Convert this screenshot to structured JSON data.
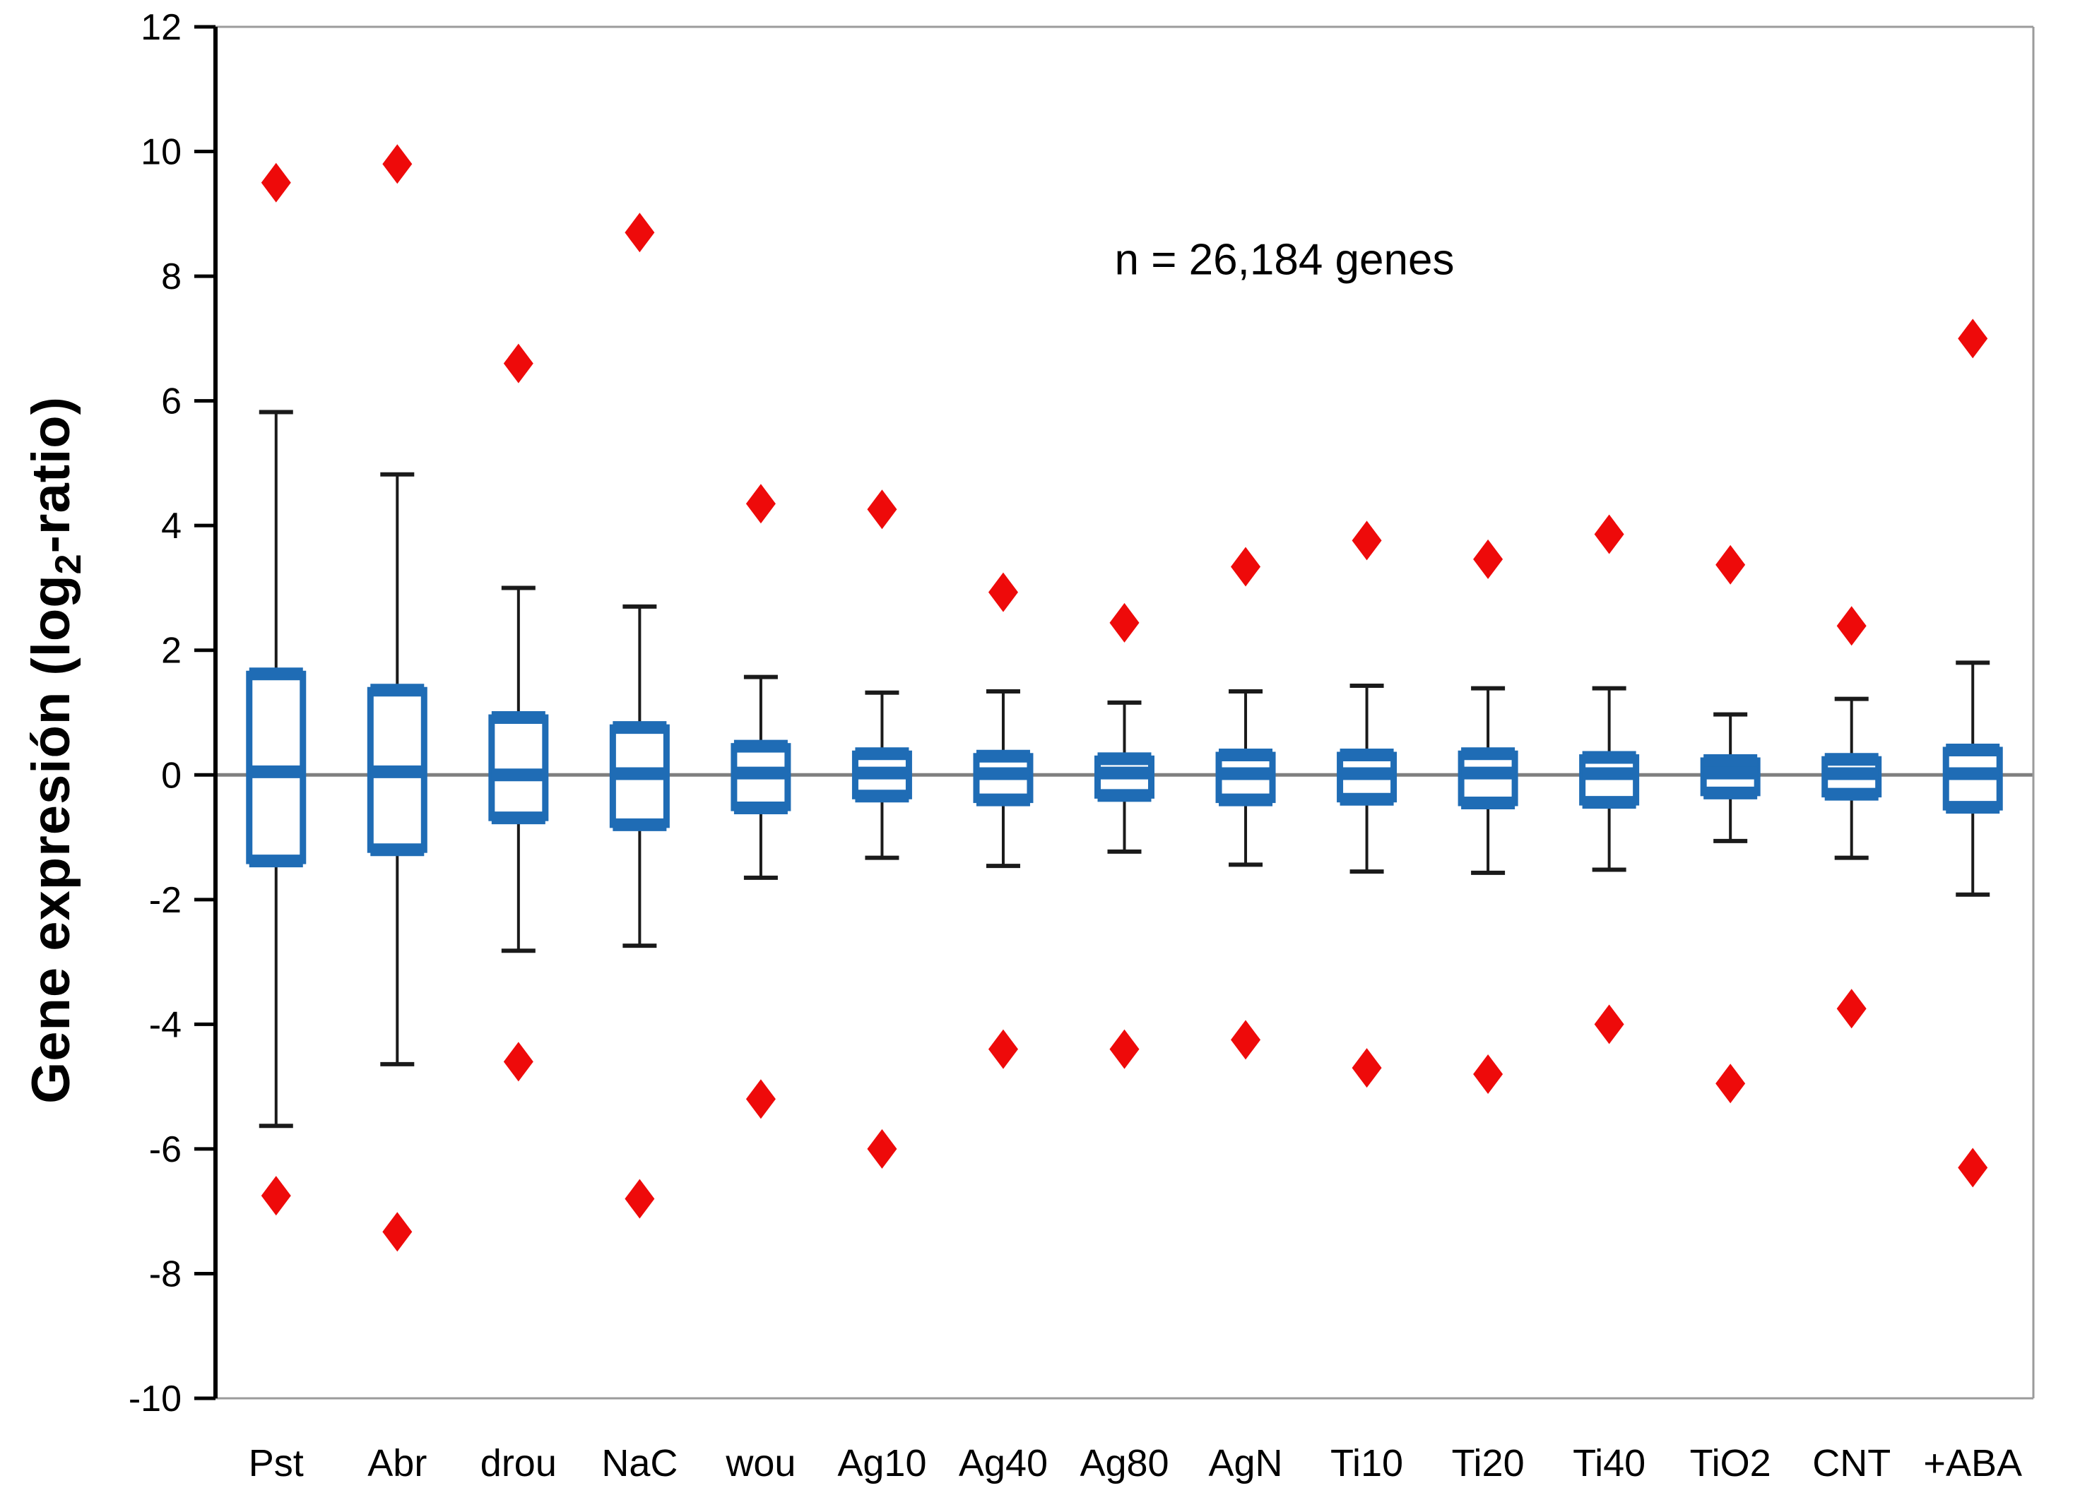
{
  "figure": {
    "annotation": "n = 26,184 genes",
    "ylabel": {
      "prefix": "Gene expresión (log",
      "sub": "2",
      "suffix": "-ratio)"
    }
  },
  "chart_data": {
    "type": "box",
    "title": "",
    "xlabel": "",
    "ylabel": "Gene expresión (log2-ratio)",
    "annotation": "n = 26,184 genes",
    "ylim": [
      -10,
      12
    ],
    "yticks": [
      12,
      10,
      8,
      6,
      4,
      2,
      0,
      -2,
      -4,
      -6,
      -8,
      -10
    ],
    "grid": false,
    "zero_line": true,
    "legend": "none",
    "categories": [
      "Pst",
      "Abr",
      "drou",
      "NaC",
      "wou",
      "Ag10",
      "Ag40",
      "Ag80",
      "AgN",
      "Ti10",
      "Ti20",
      "Ti40",
      "TiO2",
      "CNT",
      "+ABA"
    ],
    "series": [
      {
        "name": "Pst",
        "outlier_high": 9.5,
        "whisker_high": 5.82,
        "q3": 1.62,
        "median": 0.05,
        "q1": -1.38,
        "whisker_low": -5.63,
        "outlier_low": -6.75
      },
      {
        "name": "Abr",
        "outlier_high": 9.8,
        "whisker_high": 4.82,
        "q3": 1.36,
        "median": 0.05,
        "q1": -1.2,
        "whisker_low": -4.64,
        "outlier_low": -7.33
      },
      {
        "name": "drou",
        "outlier_high": 6.6,
        "whisker_high": 3.0,
        "q3": 0.92,
        "median": 0.0,
        "q1": -0.69,
        "whisker_low": -2.82,
        "outlier_low": -4.6
      },
      {
        "name": "NaC",
        "outlier_high": 8.7,
        "whisker_high": 2.7,
        "q3": 0.76,
        "median": 0.02,
        "q1": -0.8,
        "whisker_low": -2.74,
        "outlier_low": -6.8
      },
      {
        "name": "wou",
        "outlier_high": 4.35,
        "whisker_high": 1.57,
        "q3": 0.46,
        "median": 0.03,
        "q1": -0.53,
        "whisker_low": -1.65,
        "outlier_low": -5.2
      },
      {
        "name": "Ag10",
        "outlier_high": 4.26,
        "whisker_high": 1.32,
        "q3": 0.34,
        "median": 0.03,
        "q1": -0.34,
        "whisker_low": -1.33,
        "outlier_low": -6.0
      },
      {
        "name": "Ag40",
        "outlier_high": 2.93,
        "whisker_high": 1.34,
        "q3": 0.3,
        "median": 0.02,
        "q1": -0.4,
        "whisker_low": -1.46,
        "outlier_low": -4.4
      },
      {
        "name": "Ag80",
        "outlier_high": 2.44,
        "whisker_high": 1.16,
        "q3": 0.26,
        "median": 0.03,
        "q1": -0.33,
        "whisker_low": -1.23,
        "outlier_low": -4.4
      },
      {
        "name": "AgN",
        "outlier_high": 3.34,
        "whisker_high": 1.34,
        "q3": 0.32,
        "median": 0.02,
        "q1": -0.4,
        "whisker_low": -1.44,
        "outlier_low": -4.25
      },
      {
        "name": "Ti10",
        "outlier_high": 3.76,
        "whisker_high": 1.43,
        "q3": 0.32,
        "median": 0.02,
        "q1": -0.39,
        "whisker_low": -1.55,
        "outlier_low": -4.7
      },
      {
        "name": "Ti20",
        "outlier_high": 3.46,
        "whisker_high": 1.39,
        "q3": 0.34,
        "median": 0.03,
        "q1": -0.45,
        "whisker_low": -1.57,
        "outlier_low": -4.8
      },
      {
        "name": "Ti40",
        "outlier_high": 3.86,
        "whisker_high": 1.39,
        "q3": 0.28,
        "median": 0.02,
        "q1": -0.44,
        "whisker_low": -1.52,
        "outlier_low": -4.0
      },
      {
        "name": "TiO2",
        "outlier_high": 3.37,
        "whisker_high": 0.97,
        "q3": 0.23,
        "median": 0.03,
        "q1": -0.29,
        "whisker_low": -1.06,
        "outlier_low": -4.95
      },
      {
        "name": "CNT",
        "outlier_high": 2.39,
        "whisker_high": 1.22,
        "q3": 0.25,
        "median": 0.02,
        "q1": -0.31,
        "whisker_low": -1.33,
        "outlier_low": -3.75
      },
      {
        "name": "+ABA",
        "outlier_high": 7.0,
        "whisker_high": 1.8,
        "q3": 0.4,
        "median": 0.02,
        "q1": -0.52,
        "whisker_low": -1.92,
        "outlier_low": -6.3
      }
    ],
    "colors": {
      "box": "#1F6CB5",
      "box_border": "#17599B",
      "box_fill": "#FFFFFF",
      "outlier": "#EE0A0A",
      "whisker": "#1A1A1A",
      "zero_line": "#7F7F7F",
      "plot_border": "#9B9B9B",
      "axis": "#000000",
      "text": "#000000"
    }
  }
}
